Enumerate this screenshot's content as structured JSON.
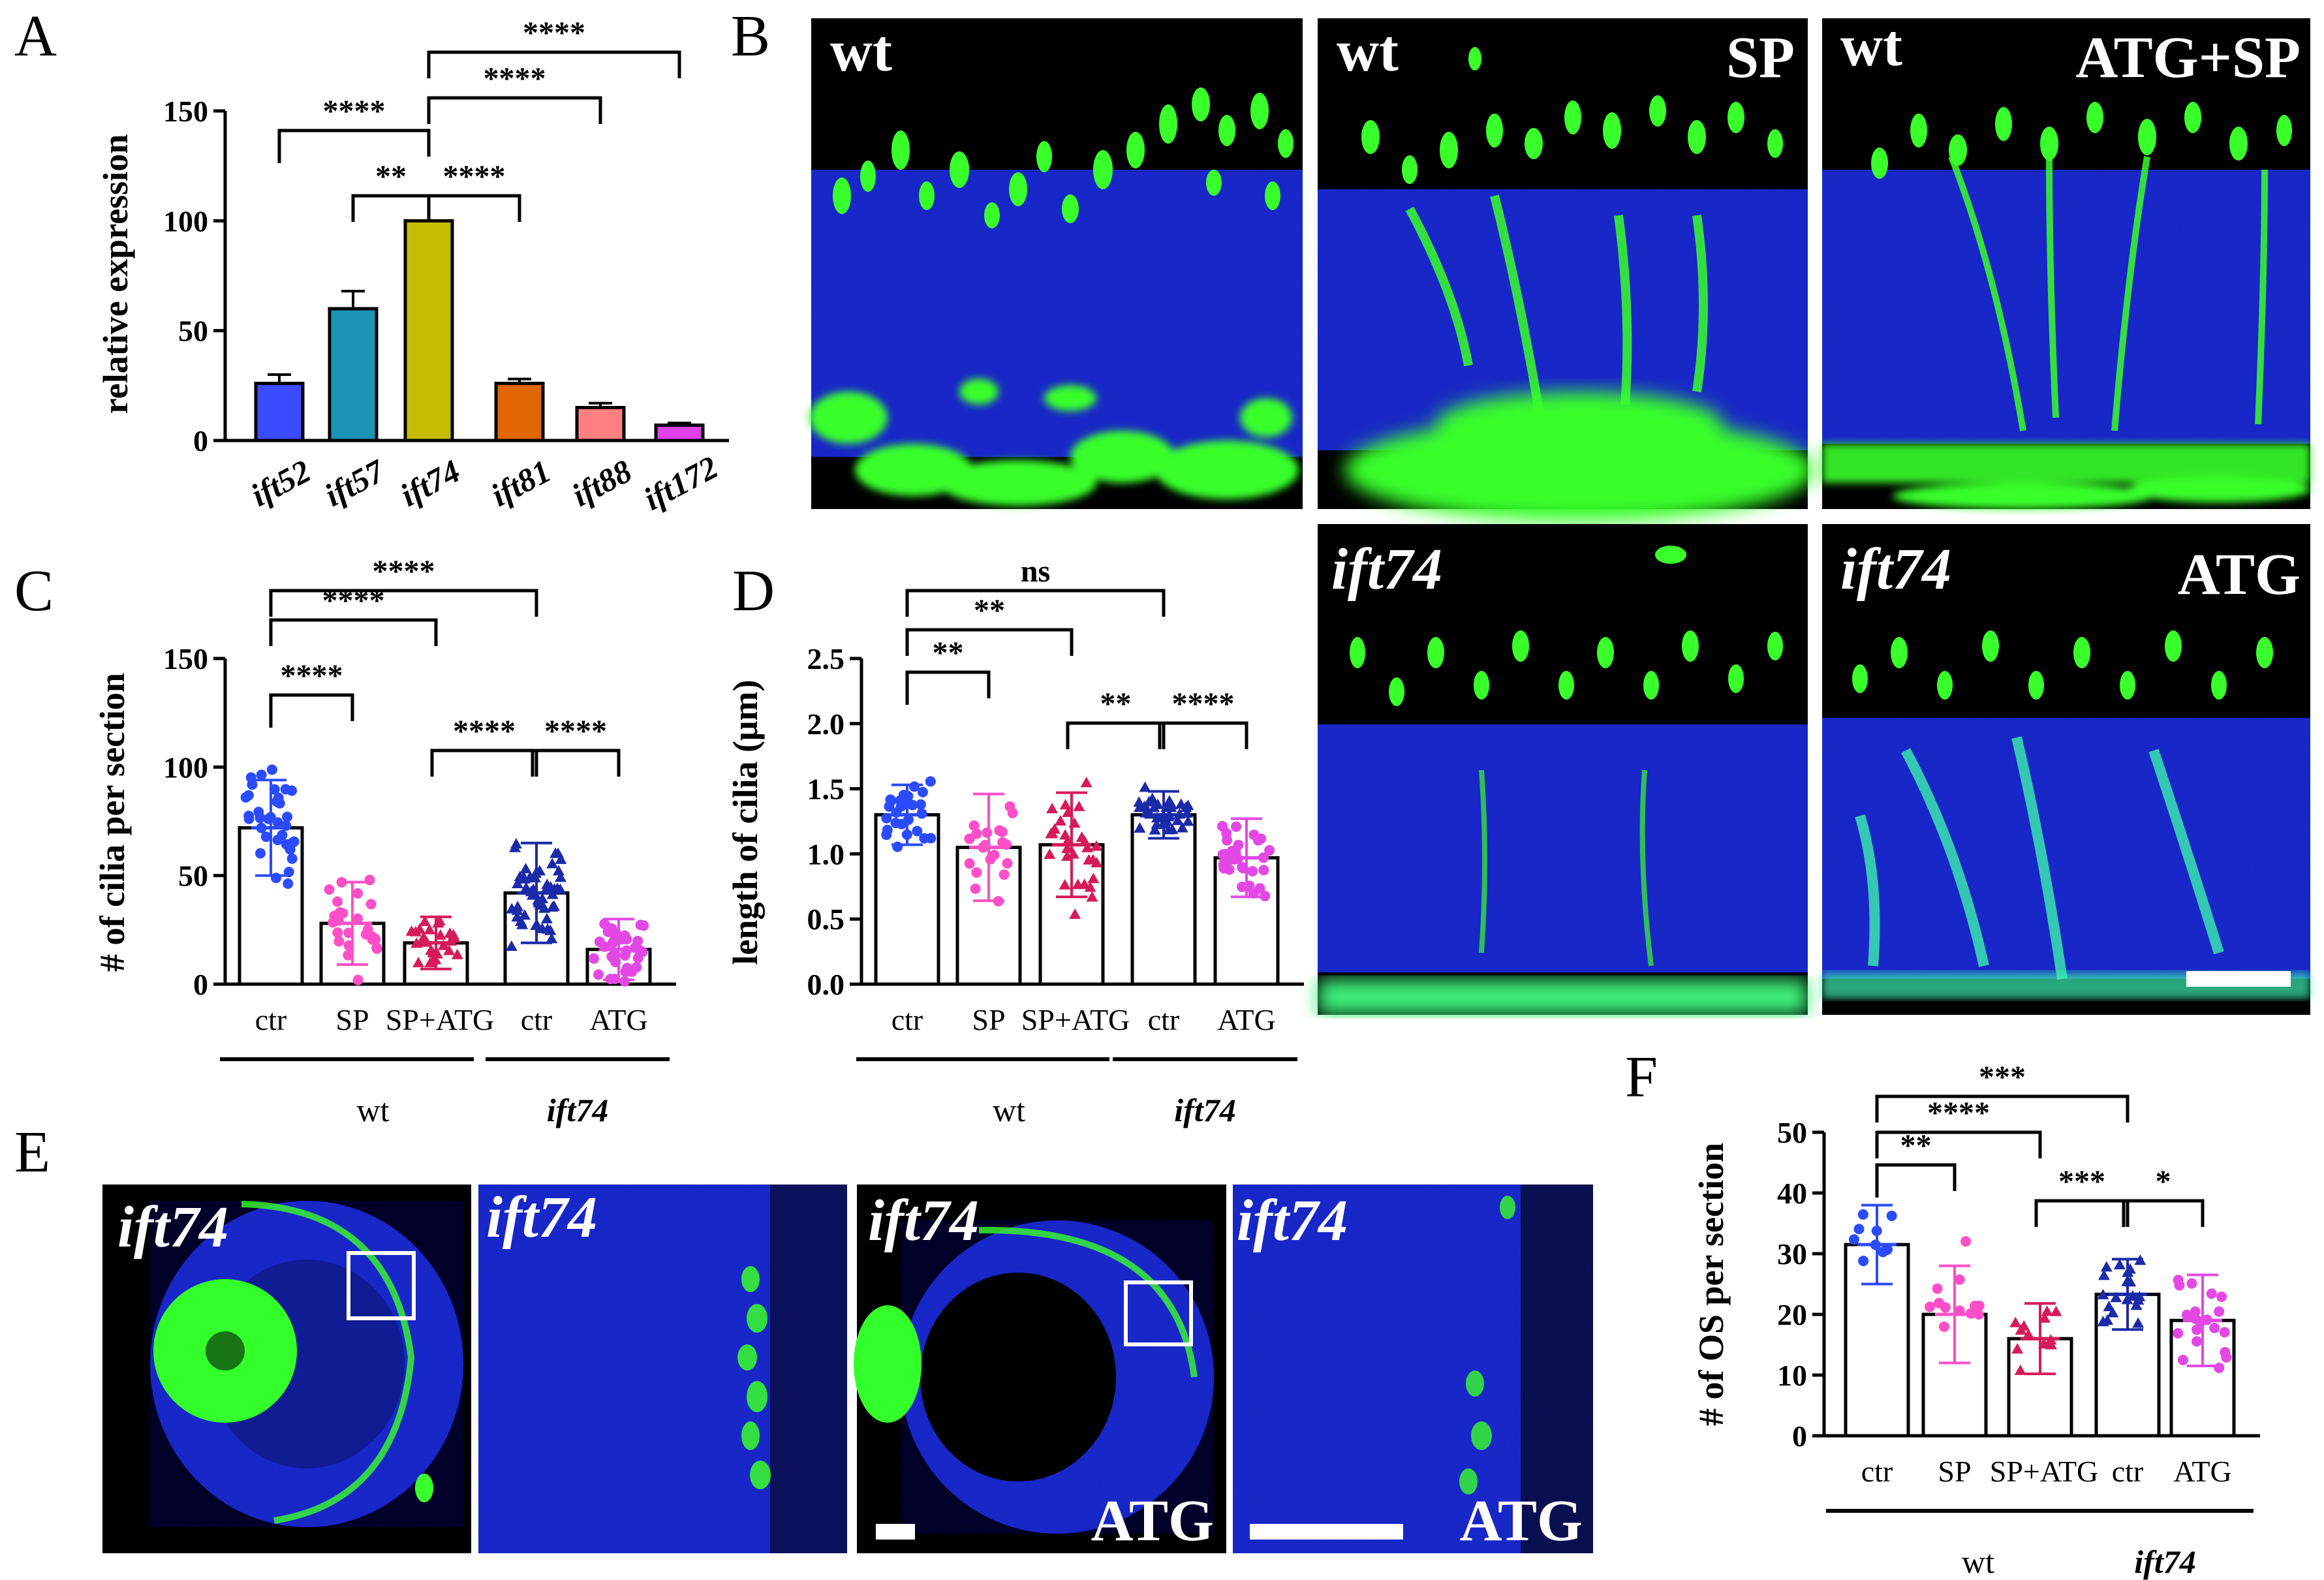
{
  "panels": {
    "A": "A",
    "B": "B",
    "C": "C",
    "D": "D",
    "E": "E",
    "F": "F"
  },
  "colors": {
    "nucleus_blue": "#1e2fc4",
    "cilia_green": "#33ff2a",
    "wt_marker": "#2b4bff",
    "sp_marker": "#ff4fc8",
    "atgsp_marker": "#d61a5a",
    "ift74_marker": "#1b2aa8",
    "atg_marker": "#e448e4"
  },
  "chart_data": [
    {
      "id": "A",
      "type": "bar",
      "ylabel": "relative expression",
      "ylim": [
        0,
        150
      ],
      "yticks": [
        "0",
        "50",
        "100",
        "150"
      ],
      "categories": [
        "ift52",
        "ift57",
        "ift74",
        "ift81",
        "ift88",
        "ift172"
      ],
      "values": [
        26,
        60,
        100,
        26,
        15,
        7
      ],
      "errors": [
        4,
        8,
        0,
        2,
        2,
        1
      ],
      "bar_colors": [
        "#3d4bff",
        "#1b93b5",
        "#c4bd00",
        "#e06600",
        "#ff8080",
        "#e040e8"
      ],
      "significance": [
        {
          "a": 0,
          "b": 2,
          "label": "****"
        },
        {
          "a": 1,
          "b": 2,
          "label": "**"
        },
        {
          "a": 2,
          "b": 3,
          "label": "****"
        },
        {
          "a": 2,
          "b": 4,
          "label": "****"
        },
        {
          "a": 2,
          "b": 5,
          "label": "****"
        }
      ]
    },
    {
      "id": "C",
      "type": "bar",
      "ylabel": "# of cilia per section",
      "ylim": [
        0,
        150
      ],
      "yticks": [
        "0",
        "50",
        "100",
        "150"
      ],
      "categories": [
        "ctr",
        "SP",
        "SP+ATG",
        "ctr",
        "ATG"
      ],
      "groups": [
        {
          "label": "wt",
          "span": [
            0,
            2
          ]
        },
        {
          "label": "ift74",
          "span": [
            3,
            4
          ]
        }
      ],
      "values": [
        72,
        28,
        19,
        42,
        16
      ],
      "sd": [
        22,
        19,
        12,
        23,
        14
      ],
      "significance": [
        {
          "a": 0,
          "b": 1,
          "label": "****"
        },
        {
          "a": 0,
          "b": 2,
          "label": "****"
        },
        {
          "a": 0,
          "b": 3,
          "label": "****"
        },
        {
          "a": 2,
          "b": 3,
          "label": "****"
        },
        {
          "a": 3,
          "b": 4,
          "label": "****"
        }
      ]
    },
    {
      "id": "D",
      "type": "bar",
      "ylabel": "length of cilia (μm)",
      "ylim": [
        0,
        2.5
      ],
      "yticks": [
        "0.0",
        "0.5",
        "1.0",
        "1.5",
        "2.0",
        "2.5"
      ],
      "categories": [
        "ctr",
        "SP",
        "SP+ATG",
        "ctr",
        "ATG"
      ],
      "groups": [
        {
          "label": "wt",
          "span": [
            0,
            2
          ]
        },
        {
          "label": "ift74",
          "span": [
            3,
            4
          ]
        }
      ],
      "values": [
        1.3,
        1.05,
        1.07,
        1.3,
        0.97
      ],
      "sd": [
        0.23,
        0.41,
        0.4,
        0.18,
        0.3
      ],
      "significance": [
        {
          "a": 0,
          "b": 1,
          "label": "**"
        },
        {
          "a": 0,
          "b": 2,
          "label": "**"
        },
        {
          "a": 0,
          "b": 3,
          "label": "ns"
        },
        {
          "a": 2,
          "b": 3,
          "label": "**"
        },
        {
          "a": 3,
          "b": 4,
          "label": "****"
        }
      ]
    },
    {
      "id": "F",
      "type": "bar",
      "ylabel": "# of OS per section",
      "ylim": [
        0,
        50
      ],
      "yticks": [
        "0",
        "10",
        "20",
        "30",
        "40",
        "50"
      ],
      "categories": [
        "ctr",
        "SP",
        "SP+ATG",
        "ctr",
        "ATG"
      ],
      "groups": [
        {
          "label": "wt",
          "span": [
            0,
            2
          ]
        },
        {
          "label": "ift74",
          "span": [
            3,
            4
          ]
        }
      ],
      "values": [
        31.5,
        20,
        16,
        23.3,
        19
      ],
      "sd": [
        6.5,
        8,
        5.8,
        5.8,
        7.5
      ],
      "significance": [
        {
          "a": 0,
          "b": 1,
          "label": "**"
        },
        {
          "a": 0,
          "b": 2,
          "label": "****"
        },
        {
          "a": 0,
          "b": 3,
          "label": "***"
        },
        {
          "a": 2,
          "b": 3,
          "label": "***"
        },
        {
          "a": 3,
          "b": 4,
          "label": "*"
        }
      ]
    }
  ],
  "micrographs": {
    "B": [
      {
        "labels": [
          "wt"
        ],
        "italic": false
      },
      {
        "labels": [
          "wt",
          "SP"
        ],
        "italic": false
      },
      {
        "labels": [
          "wt",
          "ATG+SP"
        ],
        "italic": false
      },
      {
        "labels": [
          "ift74"
        ],
        "italic": true
      },
      {
        "labels": [
          "ift74",
          "ATG"
        ],
        "italic": true
      }
    ],
    "E": [
      {
        "labels": [
          "ift74"
        ],
        "italic": true
      },
      {
        "labels": [
          "ift74"
        ],
        "italic": true
      },
      {
        "labels": [
          "ift74",
          "ATG"
        ],
        "italic": true
      },
      {
        "labels": [
          "ift74",
          "ATG"
        ],
        "italic": true
      }
    ]
  }
}
